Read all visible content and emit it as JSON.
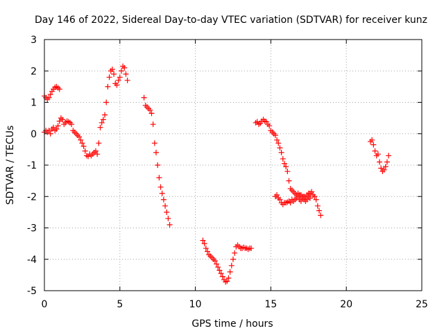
{
  "chart_data": {
    "type": "scatter",
    "title": "Day 146 of 2022, Sidereal Day-to-day VTEC variation (SDTVAR) for receiver kunz",
    "xlabel": "GPS time / hours",
    "ylabel": "SDTVAR / TECUs",
    "xlim": [
      0,
      25
    ],
    "ylim": [
      -5,
      3
    ],
    "xticks": [
      0,
      5,
      10,
      15,
      20,
      25
    ],
    "xtick_labels": [
      "0",
      "5",
      "10",
      "15",
      "20",
      "25"
    ],
    "yticks": [
      -5,
      -4,
      -3,
      -2,
      -1,
      0,
      1,
      2,
      3
    ],
    "ytick_labels": [
      "-5",
      "-4",
      "-3",
      "-2",
      "-1",
      "0",
      "1",
      "2",
      "3"
    ],
    "grid": true,
    "legend": "none",
    "marker": "plus",
    "color": "#ff0000",
    "series": [
      {
        "x": [
          0.0,
          0.1,
          0.2,
          0.3,
          0.4,
          0.5,
          0.6,
          0.7,
          0.8,
          0.9,
          1.0
        ],
        "y": [
          1.2,
          1.15,
          1.1,
          1.15,
          1.25,
          1.35,
          1.42,
          1.48,
          1.5,
          1.46,
          1.42
        ]
      },
      {
        "x": [
          0.0,
          0.1,
          0.2,
          0.3,
          0.4,
          0.5,
          0.6,
          0.7,
          0.8,
          0.9,
          1.0,
          1.1,
          1.2,
          1.3,
          1.4,
          1.5,
          1.6,
          1.7,
          1.8,
          1.9,
          2.0,
          2.1,
          2.2,
          2.3,
          2.4,
          2.5,
          2.6,
          2.7,
          2.8,
          2.9,
          3.0,
          3.1,
          3.2,
          3.3,
          3.4,
          3.5,
          3.6,
          3.7,
          3.8,
          3.9,
          4.0,
          4.1,
          4.2,
          4.3,
          4.4,
          4.5,
          4.6,
          4.7,
          4.8,
          4.9,
          5.0,
          5.1,
          5.2,
          5.3,
          5.4,
          5.5
        ],
        "y": [
          0.05,
          0.1,
          0.05,
          0.1,
          0.0,
          0.15,
          0.2,
          0.1,
          0.15,
          0.25,
          0.4,
          0.5,
          0.45,
          0.3,
          0.35,
          0.4,
          0.38,
          0.35,
          0.3,
          0.1,
          0.05,
          0.0,
          -0.05,
          -0.1,
          -0.2,
          -0.3,
          -0.4,
          -0.55,
          -0.7,
          -0.72,
          -0.65,
          -0.7,
          -0.65,
          -0.6,
          -0.55,
          -0.65,
          -0.3,
          0.2,
          0.35,
          0.45,
          0.6,
          1.0,
          1.5,
          1.8,
          2.0,
          2.05,
          1.9,
          1.6,
          1.55,
          1.7,
          1.8,
          2.0,
          2.15,
          2.1,
          1.9,
          1.7
        ]
      },
      {
        "x": [
          6.6,
          6.7,
          6.8,
          6.9,
          7.0,
          7.1,
          7.2,
          7.3,
          7.4,
          7.5,
          7.6,
          7.7,
          7.8,
          7.9,
          8.0,
          8.1,
          8.2,
          8.3
        ],
        "y": [
          1.15,
          0.9,
          0.85,
          0.8,
          0.75,
          0.65,
          0.3,
          -0.3,
          -0.6,
          -1.0,
          -1.4,
          -1.7,
          -1.9,
          -2.1,
          -2.3,
          -2.5,
          -2.7,
          -2.9
        ]
      },
      {
        "x": [
          10.5,
          10.6,
          10.7,
          10.8,
          10.9,
          11.0,
          11.1,
          11.2,
          11.3,
          11.4,
          11.5,
          11.6,
          11.7,
          11.8,
          11.9,
          12.0,
          12.1,
          12.2,
          12.3,
          12.4,
          12.5,
          12.6,
          12.7,
          12.8,
          12.9,
          13.0,
          13.1,
          13.2,
          13.3,
          13.4,
          13.5,
          13.6,
          13.7
        ],
        "y": [
          -3.4,
          -3.5,
          -3.65,
          -3.75,
          -3.85,
          -3.9,
          -3.95,
          -4.0,
          -4.05,
          -4.15,
          -4.25,
          -4.35,
          -4.45,
          -4.55,
          -4.65,
          -4.72,
          -4.7,
          -4.6,
          -4.4,
          -4.2,
          -4.0,
          -3.8,
          -3.6,
          -3.55,
          -3.6,
          -3.65,
          -3.65,
          -3.62,
          -3.65,
          -3.65,
          -3.68,
          -3.65,
          -3.65
        ]
      },
      {
        "x": [
          14.0,
          14.1,
          14.2,
          14.3,
          14.4,
          14.5,
          14.6,
          14.7,
          14.8,
          14.9,
          15.0,
          15.1,
          15.2,
          15.3,
          15.4,
          15.5,
          15.6,
          15.7,
          15.8,
          15.9,
          16.0,
          16.1,
          16.2,
          16.3,
          16.4,
          16.5,
          16.6,
          16.7,
          16.8,
          16.9,
          17.0,
          17.1,
          17.2,
          17.3,
          17.4,
          17.5,
          17.6,
          17.7,
          17.8,
          17.9,
          18.0,
          18.1,
          18.2,
          18.3
        ],
        "y": [
          0.35,
          0.38,
          0.3,
          0.33,
          0.4,
          0.45,
          0.4,
          0.38,
          0.3,
          0.25,
          0.1,
          0.05,
          0.0,
          -0.05,
          -0.2,
          -0.3,
          -0.45,
          -0.6,
          -0.8,
          -0.95,
          -1.05,
          -1.2,
          -1.5,
          -1.75,
          -1.8,
          -1.85,
          -1.9,
          -1.95,
          -1.9,
          -1.95,
          -1.95,
          -2.05,
          -2.0,
          -2.05,
          -1.95,
          -1.9,
          -1.9,
          -1.85,
          -1.95,
          -2.0,
          -2.1,
          -2.3,
          -2.45,
          -2.6
        ]
      },
      {
        "x": [
          15.3,
          15.4,
          15.5,
          15.6,
          15.7,
          15.8,
          15.9,
          16.0,
          16.1,
          16.2,
          16.3,
          16.4,
          16.5,
          16.6,
          16.7,
          16.8,
          16.9,
          17.0,
          17.1,
          17.2,
          17.3,
          17.4,
          17.5,
          17.6
        ],
        "y": [
          -2.0,
          -1.95,
          -2.05,
          -2.1,
          -2.2,
          -2.25,
          -2.2,
          -2.2,
          -2.18,
          -2.15,
          -2.2,
          -2.1,
          -2.15,
          -2.1,
          -2.05,
          -2.0,
          -2.1,
          -2.15,
          -2.0,
          -2.1,
          -2.15,
          -2.1,
          -2.0,
          -2.05
        ]
      },
      {
        "x": [
          21.6,
          21.7,
          21.8,
          21.9,
          22.0,
          22.1,
          22.2,
          22.3,
          22.4,
          22.5,
          22.6,
          22.7,
          22.8
        ],
        "y": [
          -0.25,
          -0.2,
          -0.35,
          -0.55,
          -0.7,
          -0.65,
          -0.9,
          -1.1,
          -1.2,
          -1.15,
          -1.05,
          -0.9,
          -0.7
        ]
      }
    ]
  }
}
